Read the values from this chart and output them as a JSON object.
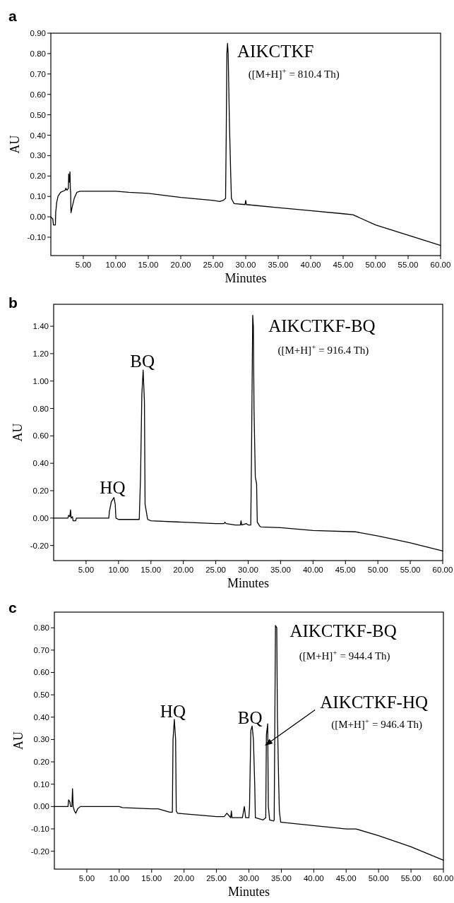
{
  "chart_data": [
    {
      "type": "line",
      "title": "a",
      "xlabel": "Minutes",
      "ylabel": "AU",
      "color": "#000000",
      "x": [
        0,
        0.3,
        0.4,
        0.7,
        0.75,
        0.9,
        1.1,
        1.5,
        2.2,
        2.3,
        2.5,
        2.7,
        2.75,
        2.85,
        2.95,
        3.0,
        3.05,
        3.1,
        3.3,
        3.6,
        4.0,
        4.5,
        10,
        12,
        15,
        20,
        25,
        26,
        26.5,
        26.9,
        27.0,
        27.1,
        27.2,
        27.3,
        27.5,
        27.7,
        27.8,
        28.2,
        29.9,
        30.0,
        30.1,
        35,
        40,
        45,
        46.5,
        50,
        55,
        60
      ],
      "values": [
        0,
        -0.01,
        -0.04,
        -0.04,
        0.02,
        0.07,
        0.1,
        0.12,
        0.13,
        0.14,
        0.13,
        0.14,
        0.21,
        0.17,
        0.22,
        0.14,
        0.12,
        0.02,
        0.05,
        0.09,
        0.12,
        0.125,
        0.125,
        0.12,
        0.115,
        0.095,
        0.08,
        0.075,
        0.08,
        0.09,
        0.4,
        0.8,
        0.85,
        0.8,
        0.45,
        0.2,
        0.09,
        0.065,
        0.06,
        0.08,
        0.06,
        0.045,
        0.03,
        0.015,
        0.01,
        -0.04,
        -0.09,
        -0.14
      ],
      "xlim": [
        0,
        60
      ],
      "ylim": [
        -0.19,
        0.9
      ],
      "xticks": [
        {
          "value": 5,
          "label": "5.00"
        },
        {
          "value": 10,
          "label": "10.00"
        },
        {
          "value": 15,
          "label": "15.00"
        },
        {
          "value": 20,
          "label": "20.00"
        },
        {
          "value": 25,
          "label": "25.00"
        },
        {
          "value": 30,
          "label": "30.00"
        },
        {
          "value": 35,
          "label": "35.00"
        },
        {
          "value": 40,
          "label": "40.00"
        },
        {
          "value": 45,
          "label": "45.00"
        },
        {
          "value": 50,
          "label": "50.00"
        },
        {
          "value": 55,
          "label": "55.00"
        },
        {
          "value": 60,
          "label": "60.00"
        }
      ],
      "yticks": [
        {
          "value": -0.1,
          "label": "-0.10"
        },
        {
          "value": 0,
          "label": "0.00"
        },
        {
          "value": 0.1,
          "label": "0.10"
        },
        {
          "value": 0.2,
          "label": "0.20"
        },
        {
          "value": 0.3,
          "label": "0.30"
        },
        {
          "value": 0.4,
          "label": "0.40"
        },
        {
          "value": 0.5,
          "label": "0.50"
        },
        {
          "value": 0.6,
          "label": "0.60"
        },
        {
          "value": 0.7,
          "label": "0.70"
        },
        {
          "value": 0.8,
          "label": "0.80"
        },
        {
          "value": 0.9,
          "label": "0.90"
        }
      ],
      "annotations": [
        {
          "text": "AIKCTKF",
          "x": 27.2,
          "y": 0.85
        },
        "([M+H]$^{+}$ = 810.4 Th)"
      ]
    },
    {
      "type": "line",
      "title": "b",
      "xlabel": "Minutes",
      "ylabel": "AU",
      "color": "#000000",
      "x": [
        0,
        2.2,
        2.3,
        2.5,
        2.6,
        2.7,
        2.9,
        3.0,
        3.4,
        3.5,
        8.5,
        8.6,
        8.9,
        9.3,
        9.5,
        9.6,
        10,
        12,
        13.2,
        13.4,
        13.6,
        13.8,
        14.0,
        14.1,
        14.5,
        15,
        20,
        25,
        26.3,
        26.4,
        26.6,
        28,
        28.8,
        28.9,
        29.0,
        29.7,
        30.0,
        30.4,
        30.5,
        30.7,
        30.8,
        30.9,
        31.1,
        31.3,
        31.4,
        31.8,
        32,
        35,
        40,
        46.5,
        50,
        55,
        60
      ],
      "values": [
        0,
        0,
        0.02,
        0.01,
        0.06,
        0,
        0.01,
        -0.02,
        -0.02,
        0,
        0,
        0.05,
        0.12,
        0.15,
        0.1,
        0,
        -0.01,
        -0.01,
        -0.01,
        0.3,
        0.9,
        1.08,
        0.85,
        0.1,
        -0.01,
        -0.02,
        -0.03,
        -0.04,
        -0.04,
        -0.03,
        -0.04,
        -0.05,
        -0.05,
        -0.02,
        -0.05,
        -0.04,
        -0.05,
        -0.05,
        0.4,
        1.48,
        1.4,
        0.8,
        0.3,
        0.25,
        -0.03,
        -0.06,
        -0.065,
        -0.07,
        -0.09,
        -0.1,
        -0.13,
        -0.18,
        -0.24
      ],
      "xlim": [
        0,
        60
      ],
      "ylim": [
        -0.31,
        1.56
      ],
      "xticks": [
        {
          "value": 5,
          "label": "5.00"
        },
        {
          "value": 10,
          "label": "10.00"
        },
        {
          "value": 15,
          "label": "15.00"
        },
        {
          "value": 20,
          "label": "20.00"
        },
        {
          "value": 25,
          "label": "25.00"
        },
        {
          "value": 30,
          "label": "30.00"
        },
        {
          "value": 35,
          "label": "35.00"
        },
        {
          "value": 40,
          "label": "40.00"
        },
        {
          "value": 45,
          "label": "45.00"
        },
        {
          "value": 50,
          "label": "50.00"
        },
        {
          "value": 55,
          "label": "55.00"
        },
        {
          "value": 60,
          "label": "60.00"
        }
      ],
      "yticks": [
        {
          "value": -0.2,
          "label": "-0.20"
        },
        {
          "value": 0,
          "label": "0.00"
        },
        {
          "value": 0.2,
          "label": "0.20"
        },
        {
          "value": 0.4,
          "label": "0.40"
        },
        {
          "value": 0.6,
          "label": "0.60"
        },
        {
          "value": 0.8,
          "label": "0.80"
        },
        {
          "value": 1,
          "label": "1.00"
        },
        {
          "value": 1.2,
          "label": "1.20"
        },
        {
          "value": 1.4,
          "label": "1.40"
        }
      ],
      "annotations": [
        {
          "text": "HQ",
          "x": 9.3,
          "y": 0.15
        },
        {
          "text": "BQ",
          "x": 13.8,
          "y": 1.08
        },
        {
          "text": "AIKCTKF-BQ",
          "x": 30.7,
          "y": 1.48
        },
        "([M+H]$^{+}$ = 916.4 Th)"
      ]
    },
    {
      "type": "line",
      "title": "c",
      "xlabel": "Minutes",
      "ylabel": "AU",
      "color": "#000000",
      "x": [
        0,
        2.1,
        2.2,
        2.4,
        2.5,
        2.7,
        2.8,
        2.9,
        3.1,
        3.3,
        3.6,
        4,
        10,
        10.5,
        15,
        16,
        17.8,
        18.2,
        18.3,
        18.5,
        18.7,
        18.8,
        19,
        25,
        26.2,
        26.6,
        26.9,
        27.2,
        27.3,
        27.4,
        29,
        29.3,
        29.5,
        30,
        30.1,
        30.3,
        30.5,
        30.7,
        30.9,
        31.0,
        32.2,
        32.6,
        32.7,
        32.9,
        33.0,
        33.2,
        33.8,
        33.9,
        34.0,
        34.1,
        34.3,
        34.4,
        34.6,
        34.7,
        34.9,
        35,
        40,
        45,
        46.5,
        50,
        55,
        60
      ],
      "values": [
        0,
        0,
        0.03,
        0.02,
        0,
        0,
        0.08,
        0,
        -0.02,
        -0.03,
        -0.01,
        0,
        0,
        -0.005,
        -0.01,
        -0.01,
        -0.025,
        -0.025,
        0.3,
        0.39,
        0.3,
        -0.02,
        -0.03,
        -0.045,
        -0.045,
        -0.03,
        -0.04,
        -0.05,
        -0.02,
        -0.05,
        -0.05,
        0,
        -0.05,
        -0.05,
        0,
        0.34,
        0.36,
        0.3,
        0.1,
        -0.05,
        -0.06,
        -0.05,
        0.32,
        0.37,
        0,
        -0.06,
        -0.065,
        -0.06,
        0.37,
        0.81,
        0.8,
        0.4,
        0.1,
        -0.02,
        -0.07,
        -0.07,
        -0.085,
        -0.1,
        -0.1,
        -0.13,
        -0.18,
        -0.24
      ],
      "xlim": [
        0,
        60
      ],
      "ylim": [
        -0.28,
        0.87
      ],
      "xticks": [
        {
          "value": 5,
          "label": "5.00"
        },
        {
          "value": 10,
          "label": "10.00"
        },
        {
          "value": 15,
          "label": "15.00"
        },
        {
          "value": 20,
          "label": "20.00"
        },
        {
          "value": 25,
          "label": "25.00"
        },
        {
          "value": 30,
          "label": "30.00"
        },
        {
          "value": 35,
          "label": "35.00"
        },
        {
          "value": 40,
          "label": "40.00"
        },
        {
          "value": 45,
          "label": "45.00"
        },
        {
          "value": 50,
          "label": "50.00"
        },
        {
          "value": 55,
          "label": "55.00"
        },
        {
          "value": 60,
          "label": "60.00"
        }
      ],
      "yticks": [
        {
          "value": -0.2,
          "label": "-0.20"
        },
        {
          "value": -0.1,
          "label": "-0.10"
        },
        {
          "value": 0,
          "label": "0.00"
        },
        {
          "value": 0.1,
          "label": "0.10"
        },
        {
          "value": 0.2,
          "label": "0.20"
        },
        {
          "value": 0.3,
          "label": "0.30"
        },
        {
          "value": 0.4,
          "label": "0.40"
        },
        {
          "value": 0.5,
          "label": "0.50"
        },
        {
          "value": 0.6,
          "label": "0.60"
        },
        {
          "value": 0.7,
          "label": "0.70"
        },
        {
          "value": 0.8,
          "label": "0.80"
        }
      ],
      "annotations": [
        {
          "text": "HQ",
          "x": 18.5,
          "y": 0.39
        },
        {
          "text": "BQ",
          "x": 30.5,
          "y": 0.36
        },
        {
          "text": "AIKCTKF-BQ",
          "x": 34.1,
          "y": 0.81
        },
        "([M+H]$^{+}$ = 944.4 Th)",
        "AIKCTKF-HQ",
        "([M+H]$^{+}$ = 946.4 Th)"
      ]
    }
  ]
}
